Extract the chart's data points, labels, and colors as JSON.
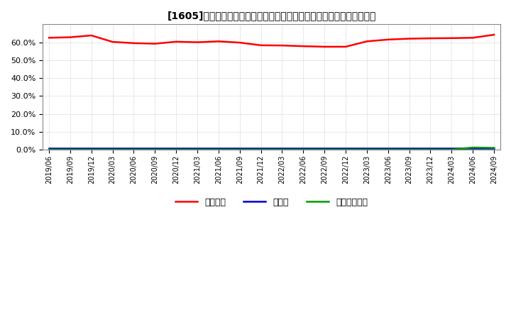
{
  "title": "[1605]　自己資本、のれん、繰延税金資産の総資産に対する比率の推移",
  "legend": [
    "自己資本",
    "のれん",
    "繰延税金資産"
  ],
  "legend_colors": [
    "#ff0000",
    "#0000cc",
    "#009900"
  ],
  "x_labels": [
    "2019/06",
    "2019/09",
    "2019/12",
    "2020/03",
    "2020/06",
    "2020/09",
    "2020/12",
    "2021/03",
    "2021/06",
    "2021/09",
    "2021/12",
    "2022/03",
    "2022/06",
    "2022/09",
    "2022/12",
    "2023/03",
    "2023/06",
    "2023/09",
    "2023/12",
    "2024/03",
    "2024/06",
    "2024/09"
  ],
  "jikoshihon": [
    62.5,
    62.8,
    63.8,
    60.2,
    59.5,
    59.2,
    60.3,
    60.0,
    60.5,
    59.8,
    58.3,
    58.2,
    57.8,
    57.5,
    57.5,
    60.5,
    61.5,
    62.0,
    62.2,
    62.3,
    62.5,
    64.2
  ],
  "noren": [
    0.8,
    0.8,
    0.8,
    0.8,
    0.8,
    0.8,
    0.8,
    0.8,
    0.8,
    0.8,
    0.8,
    0.8,
    0.8,
    0.8,
    0.8,
    0.8,
    0.8,
    0.8,
    0.8,
    0.8,
    0.8,
    0.8
  ],
  "kurinobe": [
    0.0,
    0.0,
    0.0,
    0.0,
    0.0,
    0.0,
    0.0,
    0.0,
    0.0,
    0.0,
    0.0,
    0.0,
    0.0,
    0.0,
    0.0,
    0.0,
    0.0,
    0.0,
    0.0,
    0.0,
    1.2,
    1.0
  ],
  "ylim": [
    0,
    70
  ],
  "yticks": [
    0,
    10,
    20,
    30,
    40,
    50,
    60
  ],
  "background_color": "#ffffff",
  "grid_color": "#aaaaaa",
  "title_fontsize": 10
}
